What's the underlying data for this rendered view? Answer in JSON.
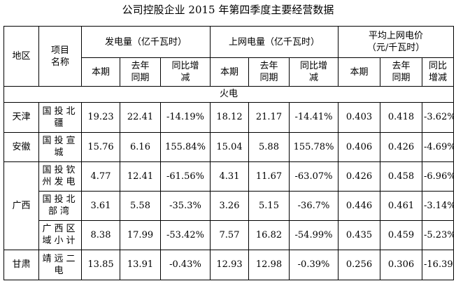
{
  "title": "公司控股企业 2015 年第四季度主要经营数据",
  "headers": {
    "region": "地区",
    "item": "项目名称",
    "gen": "发电量（亿千瓦时）",
    "grid": "上网电量（亿千瓦时）",
    "price_line1": "平均上网电价",
    "price_line2": "（元/千瓦时）",
    "current": "本期",
    "last_year": "去年同期",
    "yoy": "同比增减"
  },
  "section": "火电",
  "rows": [
    {
      "region": "天津",
      "item": "国投北疆",
      "gen": [
        "19.23",
        "22.41",
        "-14.19%"
      ],
      "grid": [
        "18.12",
        "21.17",
        "-14.41%"
      ],
      "price": [
        "0.403",
        "0.418",
        "-3.62%"
      ]
    },
    {
      "region": "安徽",
      "item": "国投宣城",
      "gen": [
        "15.76",
        "6.16",
        "155.84%"
      ],
      "grid": [
        "15.04",
        "5.88",
        "155.78%"
      ],
      "price": [
        "0.406",
        "0.426",
        "-4.69%"
      ]
    },
    {
      "region": "广西",
      "item": "国投钦州发电",
      "gen": [
        "4.77",
        "12.41",
        "-61.56%"
      ],
      "grid": [
        "4.31",
        "11.67",
        "-63.07%"
      ],
      "price": [
        "0.426",
        "0.458",
        "-6.96%"
      ]
    },
    {
      "region": "",
      "item": "国投北部湾",
      "gen": [
        "3.61",
        "5.58",
        "-35.3%"
      ],
      "grid": [
        "3.26",
        "5.15",
        "-36.7%"
      ],
      "price": [
        "0.446",
        "0.461",
        "-3.14%"
      ]
    },
    {
      "region": "",
      "item": "广西区域小计",
      "gen": [
        "8.38",
        "17.99",
        "-53.42%"
      ],
      "grid": [
        "7.57",
        "16.82",
        "-54.99%"
      ],
      "price": [
        "0.435",
        "0.459",
        "-5.23%"
      ]
    },
    {
      "region": "甘肃",
      "item": "靖远二电",
      "gen": [
        "13.85",
        "13.91",
        "-0.43%"
      ],
      "grid": [
        "12.93",
        "12.98",
        "-0.39%"
      ],
      "price": [
        "0.256",
        "0.306",
        "-16.39%"
      ]
    }
  ]
}
